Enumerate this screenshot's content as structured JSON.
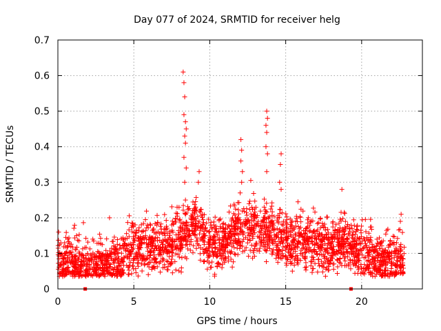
{
  "chart_data": {
    "type": "scatter",
    "title": "Day 077 of 2024, SRMTID for receiver helg",
    "xlabel": "GPS time / hours",
    "ylabel": "SRMTID / TECUs",
    "xlim": [
      0,
      24
    ],
    "ylim": [
      0,
      0.7
    ],
    "x_ticks": [
      0,
      5,
      10,
      15,
      20
    ],
    "x_tick_labels": [
      "0",
      "5",
      "10",
      "15",
      "20"
    ],
    "y_ticks": [
      0,
      0.1,
      0.2,
      0.3,
      0.4,
      0.5,
      0.6,
      0.7
    ],
    "y_tick_labels": [
      "0",
      "0.1",
      "0.2",
      "0.3",
      "0.4",
      "0.5",
      "0.6",
      "0.7"
    ],
    "grid": true,
    "marker": "plus",
    "series_color": "#ff0000",
    "zero_markers_x": [
      1.8,
      19.3
    ],
    "spikes": [
      {
        "x": 8.25,
        "y": 0.61
      },
      {
        "x": 8.3,
        "y": 0.58
      },
      {
        "x": 8.35,
        "y": 0.54
      },
      {
        "x": 8.3,
        "y": 0.49
      },
      {
        "x": 8.4,
        "y": 0.47
      },
      {
        "x": 8.45,
        "y": 0.45
      },
      {
        "x": 8.35,
        "y": 0.43
      },
      {
        "x": 8.4,
        "y": 0.41
      },
      {
        "x": 8.3,
        "y": 0.37
      },
      {
        "x": 8.45,
        "y": 0.34
      },
      {
        "x": 8.35,
        "y": 0.3
      },
      {
        "x": 8.4,
        "y": 0.25
      },
      {
        "x": 9.3,
        "y": 0.33
      },
      {
        "x": 9.25,
        "y": 0.3
      },
      {
        "x": 12.05,
        "y": 0.42
      },
      {
        "x": 12.1,
        "y": 0.39
      },
      {
        "x": 12.05,
        "y": 0.36
      },
      {
        "x": 12.15,
        "y": 0.33
      },
      {
        "x": 12.1,
        "y": 0.3
      },
      {
        "x": 12.0,
        "y": 0.27
      },
      {
        "x": 13.75,
        "y": 0.5
      },
      {
        "x": 13.8,
        "y": 0.48
      },
      {
        "x": 13.7,
        "y": 0.46
      },
      {
        "x": 13.75,
        "y": 0.44
      },
      {
        "x": 13.7,
        "y": 0.4
      },
      {
        "x": 13.8,
        "y": 0.38
      },
      {
        "x": 13.75,
        "y": 0.33
      },
      {
        "x": 14.7,
        "y": 0.38
      },
      {
        "x": 14.65,
        "y": 0.35
      },
      {
        "x": 14.6,
        "y": 0.3
      },
      {
        "x": 14.7,
        "y": 0.28
      },
      {
        "x": 18.7,
        "y": 0.28
      },
      {
        "x": 22.6,
        "y": 0.21
      },
      {
        "x": 22.55,
        "y": 0.19
      },
      {
        "x": 3.4,
        "y": 0.2
      },
      {
        "x": 0.05,
        "y": 0.16
      }
    ],
    "baseline": [
      {
        "x": 0,
        "y": 0.07
      },
      {
        "x": 1,
        "y": 0.075
      },
      {
        "x": 2,
        "y": 0.06
      },
      {
        "x": 3,
        "y": 0.07
      },
      {
        "x": 4,
        "y": 0.08
      },
      {
        "x": 5,
        "y": 0.12
      },
      {
        "x": 6,
        "y": 0.11
      },
      {
        "x": 7,
        "y": 0.12
      },
      {
        "x": 8,
        "y": 0.14
      },
      {
        "x": 9,
        "y": 0.19
      },
      {
        "x": 10,
        "y": 0.12
      },
      {
        "x": 11,
        "y": 0.13
      },
      {
        "x": 12,
        "y": 0.17
      },
      {
        "x": 13,
        "y": 0.17
      },
      {
        "x": 14,
        "y": 0.16
      },
      {
        "x": 15,
        "y": 0.13
      },
      {
        "x": 16,
        "y": 0.13
      },
      {
        "x": 17,
        "y": 0.12
      },
      {
        "x": 18,
        "y": 0.12
      },
      {
        "x": 19,
        "y": 0.13
      },
      {
        "x": 20,
        "y": 0.1
      },
      {
        "x": 21,
        "y": 0.09
      },
      {
        "x": 22,
        "y": 0.08
      },
      {
        "x": 22.8,
        "y": 0.08
      }
    ],
    "baseline_spread": 0.055,
    "approx_point_count": 2600
  }
}
